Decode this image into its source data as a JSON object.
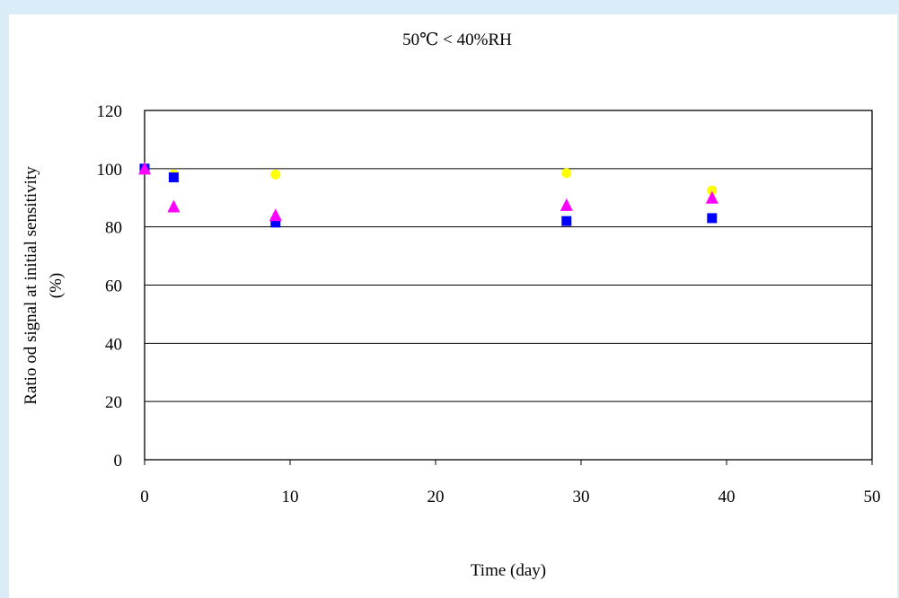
{
  "chart_data": {
    "type": "scatter",
    "title": "50℃ < 40%RH",
    "xlabel": "Time (day)",
    "ylabel_line1": "Ratio od signal at initial sensitivity",
    "ylabel_line2": "(%)",
    "xlim": [
      0,
      50
    ],
    "ylim": [
      0,
      120
    ],
    "xticks": [
      0,
      10,
      20,
      30,
      40,
      50
    ],
    "yticks": [
      0,
      20,
      40,
      60,
      80,
      100,
      120
    ],
    "grid": "horizontal",
    "series": [
      {
        "marker": "circle",
        "color": "#ffff00",
        "points": [
          [
            0,
            100
          ],
          [
            2,
            98
          ],
          [
            9,
            98
          ],
          [
            29,
            98.5
          ],
          [
            39,
            92.5
          ]
        ]
      },
      {
        "marker": "square",
        "color": "#0000ff",
        "points": [
          [
            0,
            100
          ],
          [
            2,
            97
          ],
          [
            9,
            81.5
          ],
          [
            29,
            82
          ],
          [
            39,
            83
          ]
        ]
      },
      {
        "marker": "triangle",
        "color": "#ff00ff",
        "points": [
          [
            0,
            100
          ],
          [
            2,
            87
          ],
          [
            9,
            84
          ],
          [
            29,
            87.5
          ],
          [
            39,
            90
          ]
        ]
      }
    ]
  }
}
